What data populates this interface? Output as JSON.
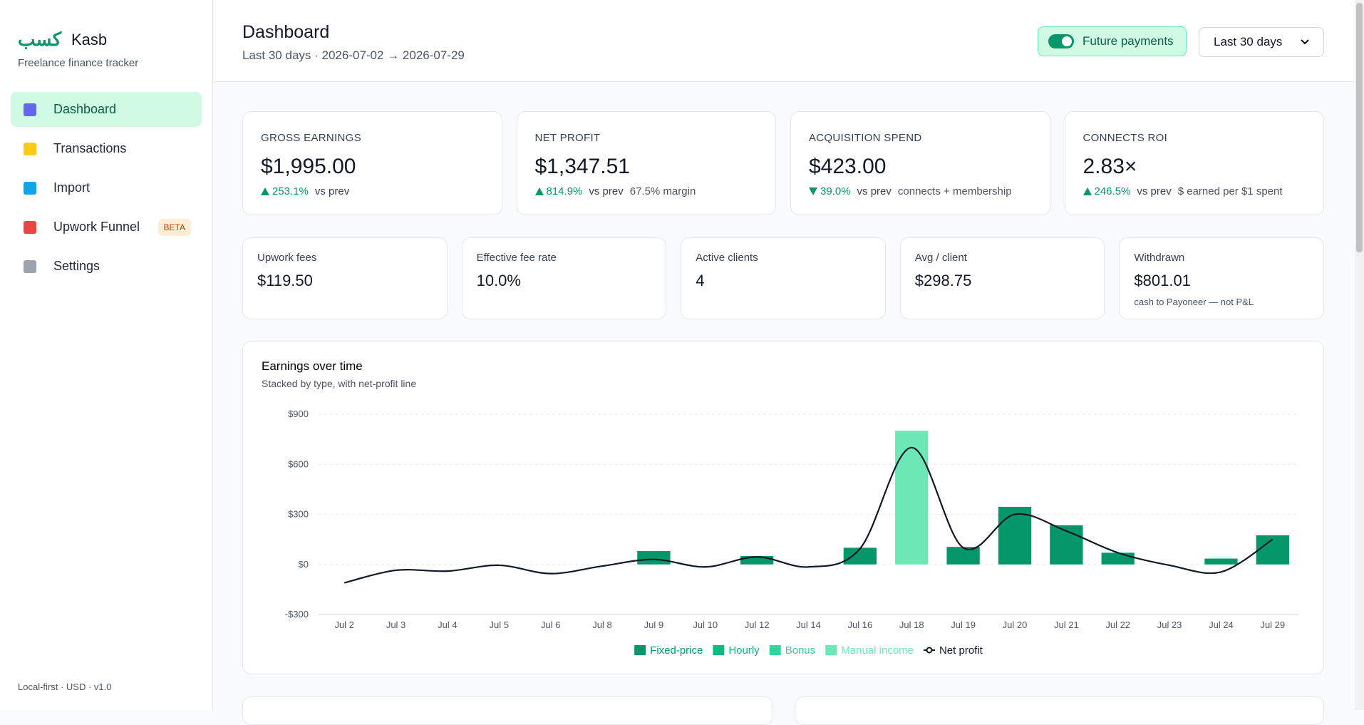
{
  "sidebar": {
    "brand_arabic": "كسب",
    "brand_name": "Kasb",
    "tagline": "Freelance finance tracker",
    "nav": [
      {
        "label": "Dashboard"
      },
      {
        "label": "Transactions"
      },
      {
        "label": "Import"
      },
      {
        "label": "Upwork Funnel",
        "badge": "BETA"
      },
      {
        "label": "Settings"
      }
    ],
    "footer": "Local-first · USD · v1.0"
  },
  "header": {
    "title": "Dashboard",
    "subtitle": "Last 30 days · 2026-07-02 → 2026-07-29",
    "toggle": "Future payments",
    "range": "Last 30 days"
  },
  "kpis": [
    {
      "label": "GROSS EARNINGS",
      "value": "$1,995.00",
      "direction": "up",
      "delta": "253.1%",
      "delta_label": "vs prev"
    },
    {
      "label": "NET PROFIT",
      "value": "$1,347.51",
      "direction": "up",
      "delta": "814.9%",
      "delta_label": "vs prev",
      "note": "67.5% margin"
    },
    {
      "label": "ACQUISITION SPEND",
      "value": "$423.00",
      "direction": "down",
      "delta": "39.0%",
      "delta_label": "vs prev",
      "note": "connects + membership"
    },
    {
      "label": "CONNECTS ROI",
      "value": "2.83×",
      "direction": "up",
      "delta": "246.5%",
      "delta_label": "vs prev",
      "note": "$ earned per $1 spent"
    }
  ],
  "stats": [
    {
      "label": "Upwork fees",
      "value": "$119.50"
    },
    {
      "label": "Effective fee rate",
      "value": "10.0%"
    },
    {
      "label": "Active clients",
      "value": "4"
    },
    {
      "label": "Avg / client",
      "value": "$298.75"
    },
    {
      "label": "Withdrawn",
      "value": "$801.01",
      "note": "cash to Payoneer — not P&L"
    }
  ],
  "chart_data": {
    "type": "bar",
    "stacked": true,
    "title": "Earnings over time",
    "subtitle": "Stacked by type, with net-profit line",
    "categories": [
      "Jul 2",
      "Jul 3",
      "Jul 4",
      "Jul 5",
      "Jul 6",
      "Jul 8",
      "Jul 9",
      "Jul 10",
      "Jul 12",
      "Jul 14",
      "Jul 16",
      "Jul 18",
      "Jul 19",
      "Jul 20",
      "Jul 21",
      "Jul 22",
      "Jul 23",
      "Jul 24",
      "Jul 29"
    ],
    "series": [
      {
        "name": "Fixed-price",
        "color": "#059669",
        "values": [
          0,
          0,
          0,
          0,
          0,
          0,
          80,
          0,
          50,
          0,
          100,
          0,
          105,
          345,
          235,
          70,
          0,
          35,
          175
        ]
      },
      {
        "name": "Hourly",
        "color": "#10b981",
        "values": [
          0,
          0,
          0,
          0,
          0,
          0,
          0,
          0,
          0,
          0,
          0,
          0,
          0,
          0,
          0,
          0,
          0,
          0,
          0
        ]
      },
      {
        "name": "Bonus",
        "color": "#34d399",
        "values": [
          0,
          0,
          0,
          0,
          0,
          0,
          0,
          0,
          0,
          0,
          0,
          0,
          0,
          0,
          0,
          0,
          0,
          0,
          0
        ]
      },
      {
        "name": "Manual income",
        "color": "#6ee7b7",
        "values": [
          0,
          0,
          0,
          0,
          0,
          0,
          0,
          0,
          0,
          0,
          0,
          800,
          0,
          0,
          0,
          0,
          0,
          0,
          0
        ]
      },
      {
        "name": "Net profit",
        "type": "line",
        "color": "#111827",
        "values": [
          -110,
          -35,
          -40,
          -5,
          -55,
          -10,
          30,
          -15,
          45,
          -15,
          95,
          700,
          100,
          300,
          200,
          70,
          -5,
          -45,
          150
        ]
      }
    ],
    "ylim": [
      -300,
      900
    ],
    "yticks": [
      {
        "value": -300,
        "label": "-$300"
      },
      {
        "value": 0,
        "label": "$0"
      },
      {
        "value": 300,
        "label": "$300"
      },
      {
        "value": 600,
        "label": "$600"
      },
      {
        "value": 900,
        "label": "$900"
      }
    ],
    "grid": true,
    "legend": "bottom"
  }
}
